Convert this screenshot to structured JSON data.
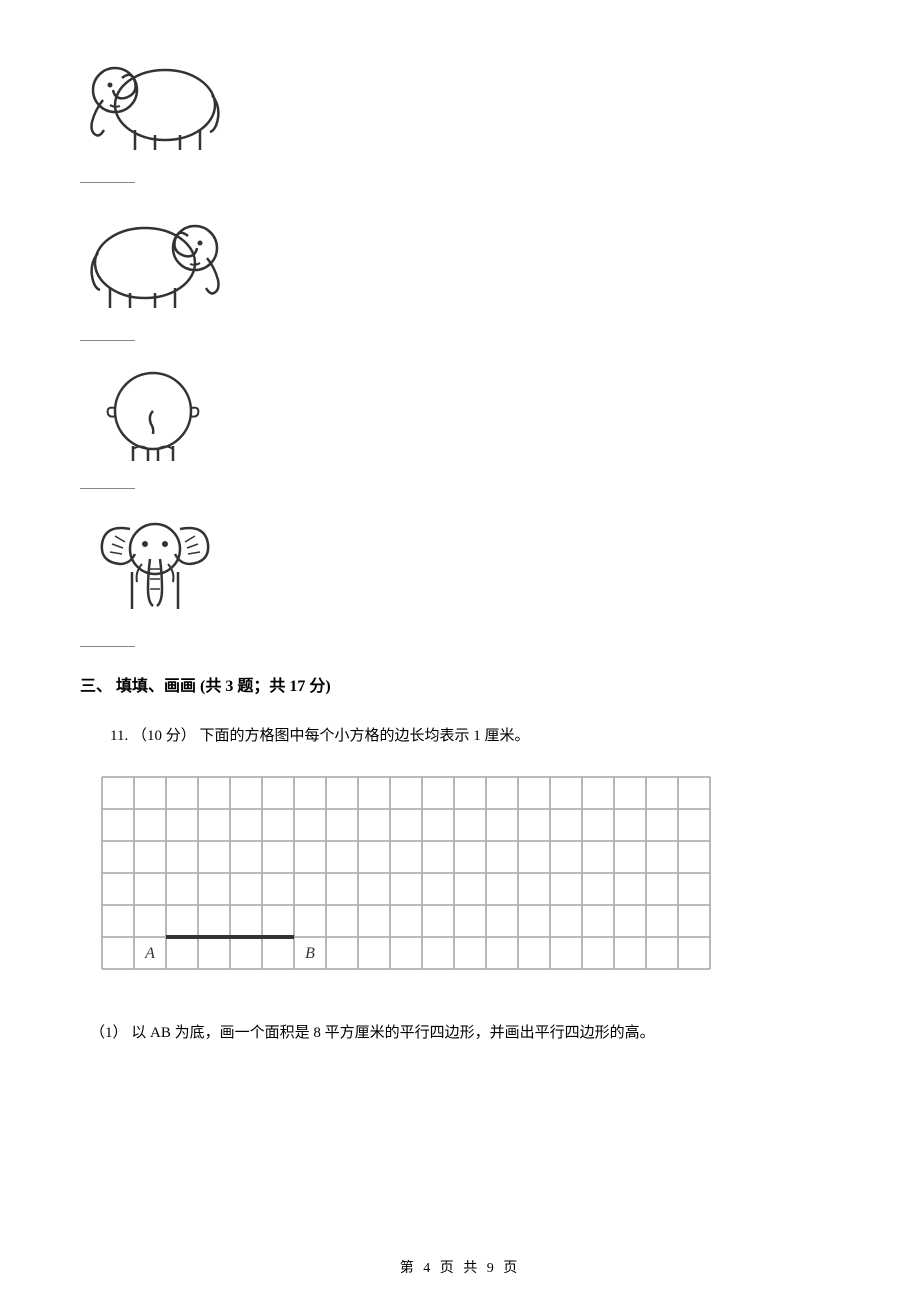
{
  "elephants": [
    {
      "name": "elephant-left-side"
    },
    {
      "name": "elephant-right-side"
    },
    {
      "name": "elephant-back"
    },
    {
      "name": "elephant-front"
    }
  ],
  "section_heading": "三、 填填、画画 (共 3 题；共 17 分)",
  "question_11": {
    "label": "11. （10 分） 下面的方格图中每个小方格的边长均表示 1 厘米。",
    "subquestion_1": "（1） 以 AB 为底，画一个面积是 8 平方厘米的平行四边形，并画出平行四边形的高。"
  },
  "grid": {
    "rows": 6,
    "cols": 19,
    "cell_size": 32,
    "border_color": "#b0b0b0",
    "background": "#ffffff",
    "label_A": "A",
    "label_B": "B",
    "A_col": 2,
    "B_col": 7
  },
  "page_footer": "第 4 页 共 9 页"
}
